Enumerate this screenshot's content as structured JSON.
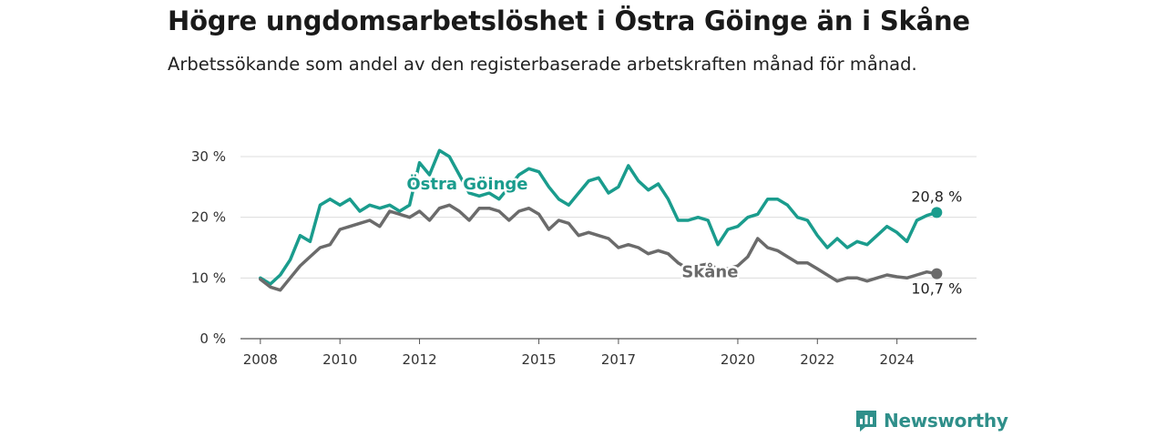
{
  "header": {
    "title": "Högre ungdomsarbetslöshet i Östra Göinge än i Skåne",
    "subtitle": "Arbetssökande som andel av den registerbaserade arbetskraften månad för månad."
  },
  "brand": {
    "name": "Newsworthy",
    "icon": "newsworthy-logo-icon",
    "color": "#2f8f8a"
  },
  "chart_data": {
    "type": "line",
    "title": "Högre ungdomsarbetslöshet i Östra Göinge än i Skåne",
    "subtitle": "Arbetssökande som andel av den registerbaserade arbetskraften månad för månad.",
    "xlabel": "",
    "ylabel": "",
    "x_ticks": [
      "2008",
      "2010",
      "2012",
      "2015",
      "2017",
      "2020",
      "2022",
      "2024"
    ],
    "y_ticks": [
      "0 %",
      "10 %",
      "20 %",
      "30 %"
    ],
    "ylim": [
      0,
      30
    ],
    "grid": true,
    "series": [
      {
        "name": "Östra Göinge",
        "color": "#1a9c8d",
        "end_label": "20,8 %",
        "points": [
          [
            "2008-01",
            10
          ],
          [
            "2008-04",
            9
          ],
          [
            "2008-07",
            10.5
          ],
          [
            "2008-10",
            13
          ],
          [
            "2009-01",
            17
          ],
          [
            "2009-04",
            16
          ],
          [
            "2009-07",
            22
          ],
          [
            "2009-10",
            23
          ],
          [
            "2010-01",
            22
          ],
          [
            "2010-04",
            23
          ],
          [
            "2010-07",
            21
          ],
          [
            "2010-10",
            22
          ],
          [
            "2011-01",
            21.5
          ],
          [
            "2011-04",
            22
          ],
          [
            "2011-07",
            21
          ],
          [
            "2011-10",
            22
          ],
          [
            "2012-01",
            29
          ],
          [
            "2012-04",
            27
          ],
          [
            "2012-07",
            31
          ],
          [
            "2012-10",
            30
          ],
          [
            "2013-01",
            27
          ],
          [
            "2013-04",
            24
          ],
          [
            "2013-07",
            23.5
          ],
          [
            "2013-10",
            24
          ],
          [
            "2014-01",
            23
          ],
          [
            "2014-04",
            25
          ],
          [
            "2014-07",
            27
          ],
          [
            "2014-10",
            28
          ],
          [
            "2015-01",
            27.5
          ],
          [
            "2015-04",
            25
          ],
          [
            "2015-07",
            23
          ],
          [
            "2015-10",
            22
          ],
          [
            "2016-01",
            24
          ],
          [
            "2016-04",
            26
          ],
          [
            "2016-07",
            26.5
          ],
          [
            "2016-10",
            24
          ],
          [
            "2017-01",
            25
          ],
          [
            "2017-04",
            28.5
          ],
          [
            "2017-07",
            26
          ],
          [
            "2017-10",
            24.5
          ],
          [
            "2018-01",
            25.5
          ],
          [
            "2018-04",
            23
          ],
          [
            "2018-07",
            19.5
          ],
          [
            "2018-10",
            19.5
          ],
          [
            "2019-01",
            20
          ],
          [
            "2019-04",
            19.5
          ],
          [
            "2019-07",
            15.5
          ],
          [
            "2019-10",
            18
          ],
          [
            "2020-01",
            18.5
          ],
          [
            "2020-04",
            20
          ],
          [
            "2020-07",
            20.5
          ],
          [
            "2020-10",
            23
          ],
          [
            "2021-01",
            23
          ],
          [
            "2021-04",
            22
          ],
          [
            "2021-07",
            20
          ],
          [
            "2021-10",
            19.5
          ],
          [
            "2022-01",
            17
          ],
          [
            "2022-04",
            15
          ],
          [
            "2022-07",
            16.5
          ],
          [
            "2022-10",
            15
          ],
          [
            "2023-01",
            16
          ],
          [
            "2023-04",
            15.5
          ],
          [
            "2023-07",
            17
          ],
          [
            "2023-10",
            18.5
          ],
          [
            "2024-01",
            17.5
          ],
          [
            "2024-04",
            16
          ],
          [
            "2024-07",
            19.5
          ],
          [
            "2024-10",
            20.3
          ],
          [
            "2025-01",
            20.8
          ]
        ]
      },
      {
        "name": "Skåne",
        "color": "#6b6b6b",
        "end_label": "10,7 %",
        "points": [
          [
            "2008-01",
            9.8
          ],
          [
            "2008-04",
            8.5
          ],
          [
            "2008-07",
            8
          ],
          [
            "2008-10",
            10
          ],
          [
            "2009-01",
            12
          ],
          [
            "2009-04",
            13.5
          ],
          [
            "2009-07",
            15
          ],
          [
            "2009-10",
            15.5
          ],
          [
            "2010-01",
            18
          ],
          [
            "2010-04",
            18.5
          ],
          [
            "2010-07",
            19
          ],
          [
            "2010-10",
            19.5
          ],
          [
            "2011-01",
            18.5
          ],
          [
            "2011-04",
            21
          ],
          [
            "2011-07",
            20.5
          ],
          [
            "2011-10",
            20
          ],
          [
            "2012-01",
            21
          ],
          [
            "2012-04",
            19.5
          ],
          [
            "2012-07",
            21.5
          ],
          [
            "2012-10",
            22
          ],
          [
            "2013-01",
            21
          ],
          [
            "2013-04",
            19.5
          ],
          [
            "2013-07",
            21.5
          ],
          [
            "2013-10",
            21.5
          ],
          [
            "2014-01",
            21
          ],
          [
            "2014-04",
            19.5
          ],
          [
            "2014-07",
            21
          ],
          [
            "2014-10",
            21.5
          ],
          [
            "2015-01",
            20.5
          ],
          [
            "2015-04",
            18
          ],
          [
            "2015-07",
            19.5
          ],
          [
            "2015-10",
            19
          ],
          [
            "2016-01",
            17
          ],
          [
            "2016-04",
            17.5
          ],
          [
            "2016-07",
            17
          ],
          [
            "2016-10",
            16.5
          ],
          [
            "2017-01",
            15
          ],
          [
            "2017-04",
            15.5
          ],
          [
            "2017-07",
            15
          ],
          [
            "2017-10",
            14
          ],
          [
            "2018-01",
            14.5
          ],
          [
            "2018-04",
            14
          ],
          [
            "2018-07",
            12.5
          ],
          [
            "2018-10",
            11.5
          ],
          [
            "2019-01",
            12
          ],
          [
            "2019-04",
            12.3
          ],
          [
            "2019-07",
            11.5
          ],
          [
            "2019-10",
            11.5
          ],
          [
            "2020-01",
            12
          ],
          [
            "2020-04",
            13.5
          ],
          [
            "2020-07",
            16.5
          ],
          [
            "2020-10",
            15
          ],
          [
            "2021-01",
            14.5
          ],
          [
            "2021-04",
            13.5
          ],
          [
            "2021-07",
            12.5
          ],
          [
            "2021-10",
            12.5
          ],
          [
            "2022-01",
            11.5
          ],
          [
            "2022-04",
            10.5
          ],
          [
            "2022-07",
            9.5
          ],
          [
            "2022-10",
            10
          ],
          [
            "2023-01",
            10
          ],
          [
            "2023-04",
            9.5
          ],
          [
            "2023-07",
            10
          ],
          [
            "2023-10",
            10.5
          ],
          [
            "2024-01",
            10.2
          ],
          [
            "2024-04",
            10
          ],
          [
            "2024-07",
            10.5
          ],
          [
            "2024-10",
            11
          ],
          [
            "2025-01",
            10.7
          ]
        ]
      }
    ]
  }
}
